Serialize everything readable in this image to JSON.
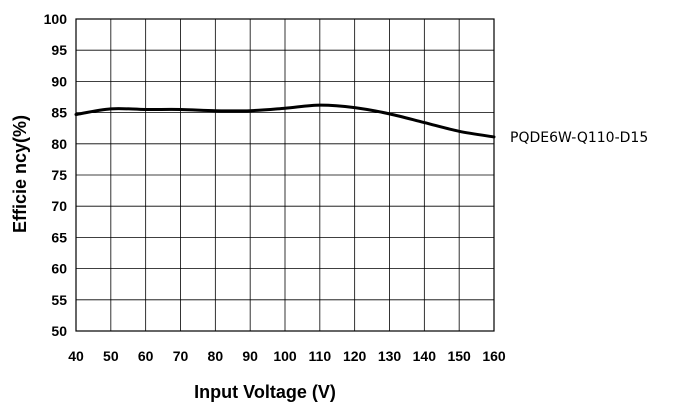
{
  "chart_data": {
    "type": "line",
    "xlabel": "Input Voltage (V)",
    "ylabel": "Efficie ncy(%)",
    "xlim": [
      40,
      160
    ],
    "ylim": [
      50,
      100
    ],
    "x_ticks": [
      "40",
      "50",
      "60",
      "70",
      "80",
      "90",
      "100",
      "110",
      "120",
      "130",
      "140",
      "150",
      "160"
    ],
    "y_ticks": [
      "50",
      "55",
      "60",
      "65",
      "70",
      "75",
      "80",
      "85",
      "90",
      "95",
      "100"
    ],
    "grid": true,
    "series": [
      {
        "name": "PQDE6W-Q110-D15",
        "color": "#000000",
        "x": [
          40,
          50,
          60,
          70,
          80,
          90,
          100,
          110,
          120,
          130,
          140,
          150,
          160
        ],
        "y": [
          84.7,
          85.6,
          85.5,
          85.5,
          85.3,
          85.3,
          85.7,
          86.2,
          85.8,
          84.8,
          83.4,
          82.0,
          81.1
        ]
      }
    ]
  }
}
